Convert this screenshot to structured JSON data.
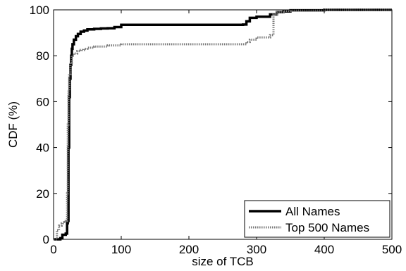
{
  "chart_data": {
    "type": "line",
    "title": "",
    "xlabel": "size of TCB",
    "ylabel": "CDF (%)",
    "xlim": [
      0,
      500
    ],
    "ylim": [
      0,
      100
    ],
    "xticks": [
      0,
      100,
      200,
      300,
      400,
      500
    ],
    "yticks": [
      0,
      20,
      40,
      60,
      80,
      100
    ],
    "grid": false,
    "legend_position": "bottom-right",
    "series": [
      {
        "name": "All Names",
        "style": "solid",
        "color": "#000000",
        "x": [
          0,
          10,
          13,
          18,
          20,
          21,
          22,
          23,
          24,
          25,
          26,
          27,
          28,
          30,
          33,
          36,
          40,
          45,
          50,
          60,
          70,
          80,
          90,
          100,
          150,
          200,
          250,
          280,
          285,
          290,
          300,
          320,
          330,
          340,
          350,
          400,
          500
        ],
        "y": [
          0,
          0.5,
          2,
          2.5,
          7,
          8,
          40,
          62,
          70,
          76,
          80,
          83,
          85,
          87,
          88.5,
          89.5,
          90.5,
          91,
          91.5,
          91.7,
          91.9,
          92,
          92.5,
          93.5,
          93.5,
          93.5,
          93.5,
          93.6,
          95,
          96.5,
          97,
          98,
          99,
          99.3,
          99.8,
          100,
          100
        ]
      },
      {
        "name": "Top 500 Names",
        "style": "dotted",
        "color": "#7a7a7a",
        "x": [
          0,
          5,
          8,
          12,
          16,
          18,
          20,
          21,
          22,
          23,
          25,
          27,
          30,
          35,
          40,
          45,
          50,
          60,
          80,
          100,
          150,
          200,
          250,
          280,
          285,
          290,
          300,
          320,
          324,
          325,
          330,
          340,
          350,
          400,
          500
        ],
        "y": [
          0,
          4,
          6,
          7,
          7.5,
          8,
          20,
          50,
          65,
          72,
          77,
          80,
          81,
          82,
          82.5,
          83,
          83.5,
          84,
          84.5,
          85,
          85,
          85,
          85,
          85,
          86,
          87,
          88,
          89,
          89,
          98,
          99,
          99.5,
          99.8,
          100,
          100
        ]
      }
    ]
  }
}
